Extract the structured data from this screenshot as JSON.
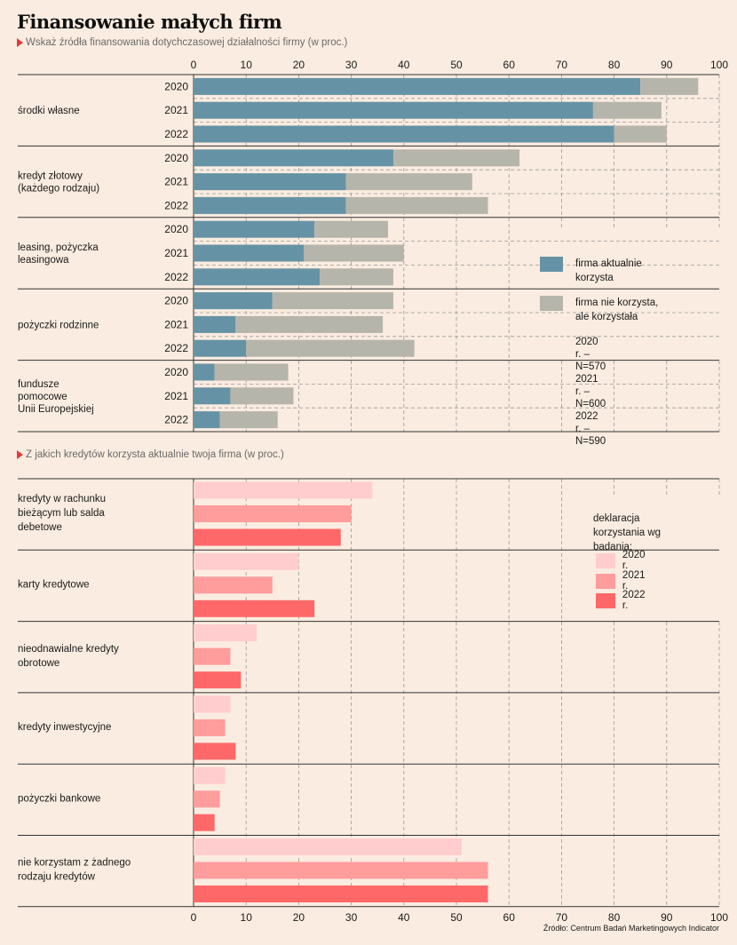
{
  "title": "Finansowanie małych firm",
  "chart1": {
    "subtitle": "Wskaż źródła finansowania dotychczasowej działalności firmy (w proc.)",
    "legend": {
      "current_label": "firma aktualnie korzysta",
      "past_label": "firma nie korzysta, ale korzystała",
      "notes": [
        "2020 r. – N=570",
        "2021 r. – N=600",
        "2022 r. – N=590"
      ]
    }
  },
  "chart2": {
    "subtitle": "Z jakich kredytów korzysta aktualnie twoja firma (w proc.)",
    "legend": {
      "title": "deklaracja korzystania wg badania:",
      "items": [
        "2020 r.",
        "2021 r.",
        "2022 r."
      ]
    }
  },
  "source": "Źródło: Centrum Badań Marketingowych Indicator",
  "chart_data": [
    {
      "type": "bar",
      "orientation": "horizontal",
      "stacked": true,
      "title": "Wskaż źródła finansowania dotychczasowej działalności firmy (w proc.)",
      "xlim": [
        0,
        100
      ],
      "xticks": [
        0,
        10,
        20,
        30,
        40,
        50,
        60,
        70,
        80,
        90,
        100
      ],
      "grid": true,
      "legend_position": "right-middle",
      "colors": {
        "current": "#6593a5",
        "past": "#b6b5ab"
      },
      "groups": [
        {
          "label": "środki własne",
          "rows": [
            {
              "year": "2020",
              "current": 85,
              "past": 11
            },
            {
              "year": "2021",
              "current": 76,
              "past": 13
            },
            {
              "year": "2022",
              "current": 80,
              "past": 10
            }
          ]
        },
        {
          "label": "kredyt złotowy\n(każdego rodzaju)",
          "rows": [
            {
              "year": "2020",
              "current": 38,
              "past": 24
            },
            {
              "year": "2021",
              "current": 29,
              "past": 24
            },
            {
              "year": "2022",
              "current": 29,
              "past": 27
            }
          ]
        },
        {
          "label": "leasing, pożyczka\nleasingowa",
          "rows": [
            {
              "year": "2020",
              "current": 23,
              "past": 14
            },
            {
              "year": "2021",
              "current": 21,
              "past": 19
            },
            {
              "year": "2022",
              "current": 24,
              "past": 14
            }
          ]
        },
        {
          "label": "pożyczki rodzinne",
          "rows": [
            {
              "year": "2020",
              "current": 15,
              "past": 23
            },
            {
              "year": "2021",
              "current": 8,
              "past": 28
            },
            {
              "year": "2022",
              "current": 10,
              "past": 32
            }
          ]
        },
        {
          "label": "fundusze\npomocowe\nUnii Europejskiej",
          "rows": [
            {
              "year": "2020",
              "current": 4,
              "past": 14
            },
            {
              "year": "2021",
              "current": 7,
              "past": 12
            },
            {
              "year": "2022",
              "current": 5,
              "past": 11
            }
          ]
        }
      ]
    },
    {
      "type": "bar",
      "orientation": "horizontal",
      "title": "Z jakich kredytów korzysta aktualnie twoja firma (w proc.)",
      "xlim": [
        0,
        100
      ],
      "xticks": [
        0,
        10,
        20,
        30,
        40,
        50,
        60,
        70,
        80,
        90,
        100
      ],
      "grid": true,
      "legend_position": "right-top",
      "series_names": [
        "2020 r.",
        "2021 r.",
        "2022 r."
      ],
      "colors": [
        "#ffcdcd",
        "#ff9c9c",
        "#ff6868"
      ],
      "groups": [
        {
          "label": "kredyty w rachunku\nbieżącym lub salda\ndebetowe",
          "values": [
            34,
            30,
            28
          ]
        },
        {
          "label": "karty kredytowe",
          "values": [
            20,
            15,
            23
          ]
        },
        {
          "label": "nieodnawialne kredyty\nobrotowe",
          "values": [
            12,
            7,
            9
          ]
        },
        {
          "label": "kredyty inwestycyjne",
          "values": [
            7,
            6,
            8
          ]
        },
        {
          "label": "pożyczki bankowe",
          "values": [
            6,
            5,
            4
          ]
        },
        {
          "label": "nie korzystam z żadnego\nrodzaju kredytów",
          "values": [
            51,
            56,
            56
          ]
        }
      ]
    }
  ]
}
